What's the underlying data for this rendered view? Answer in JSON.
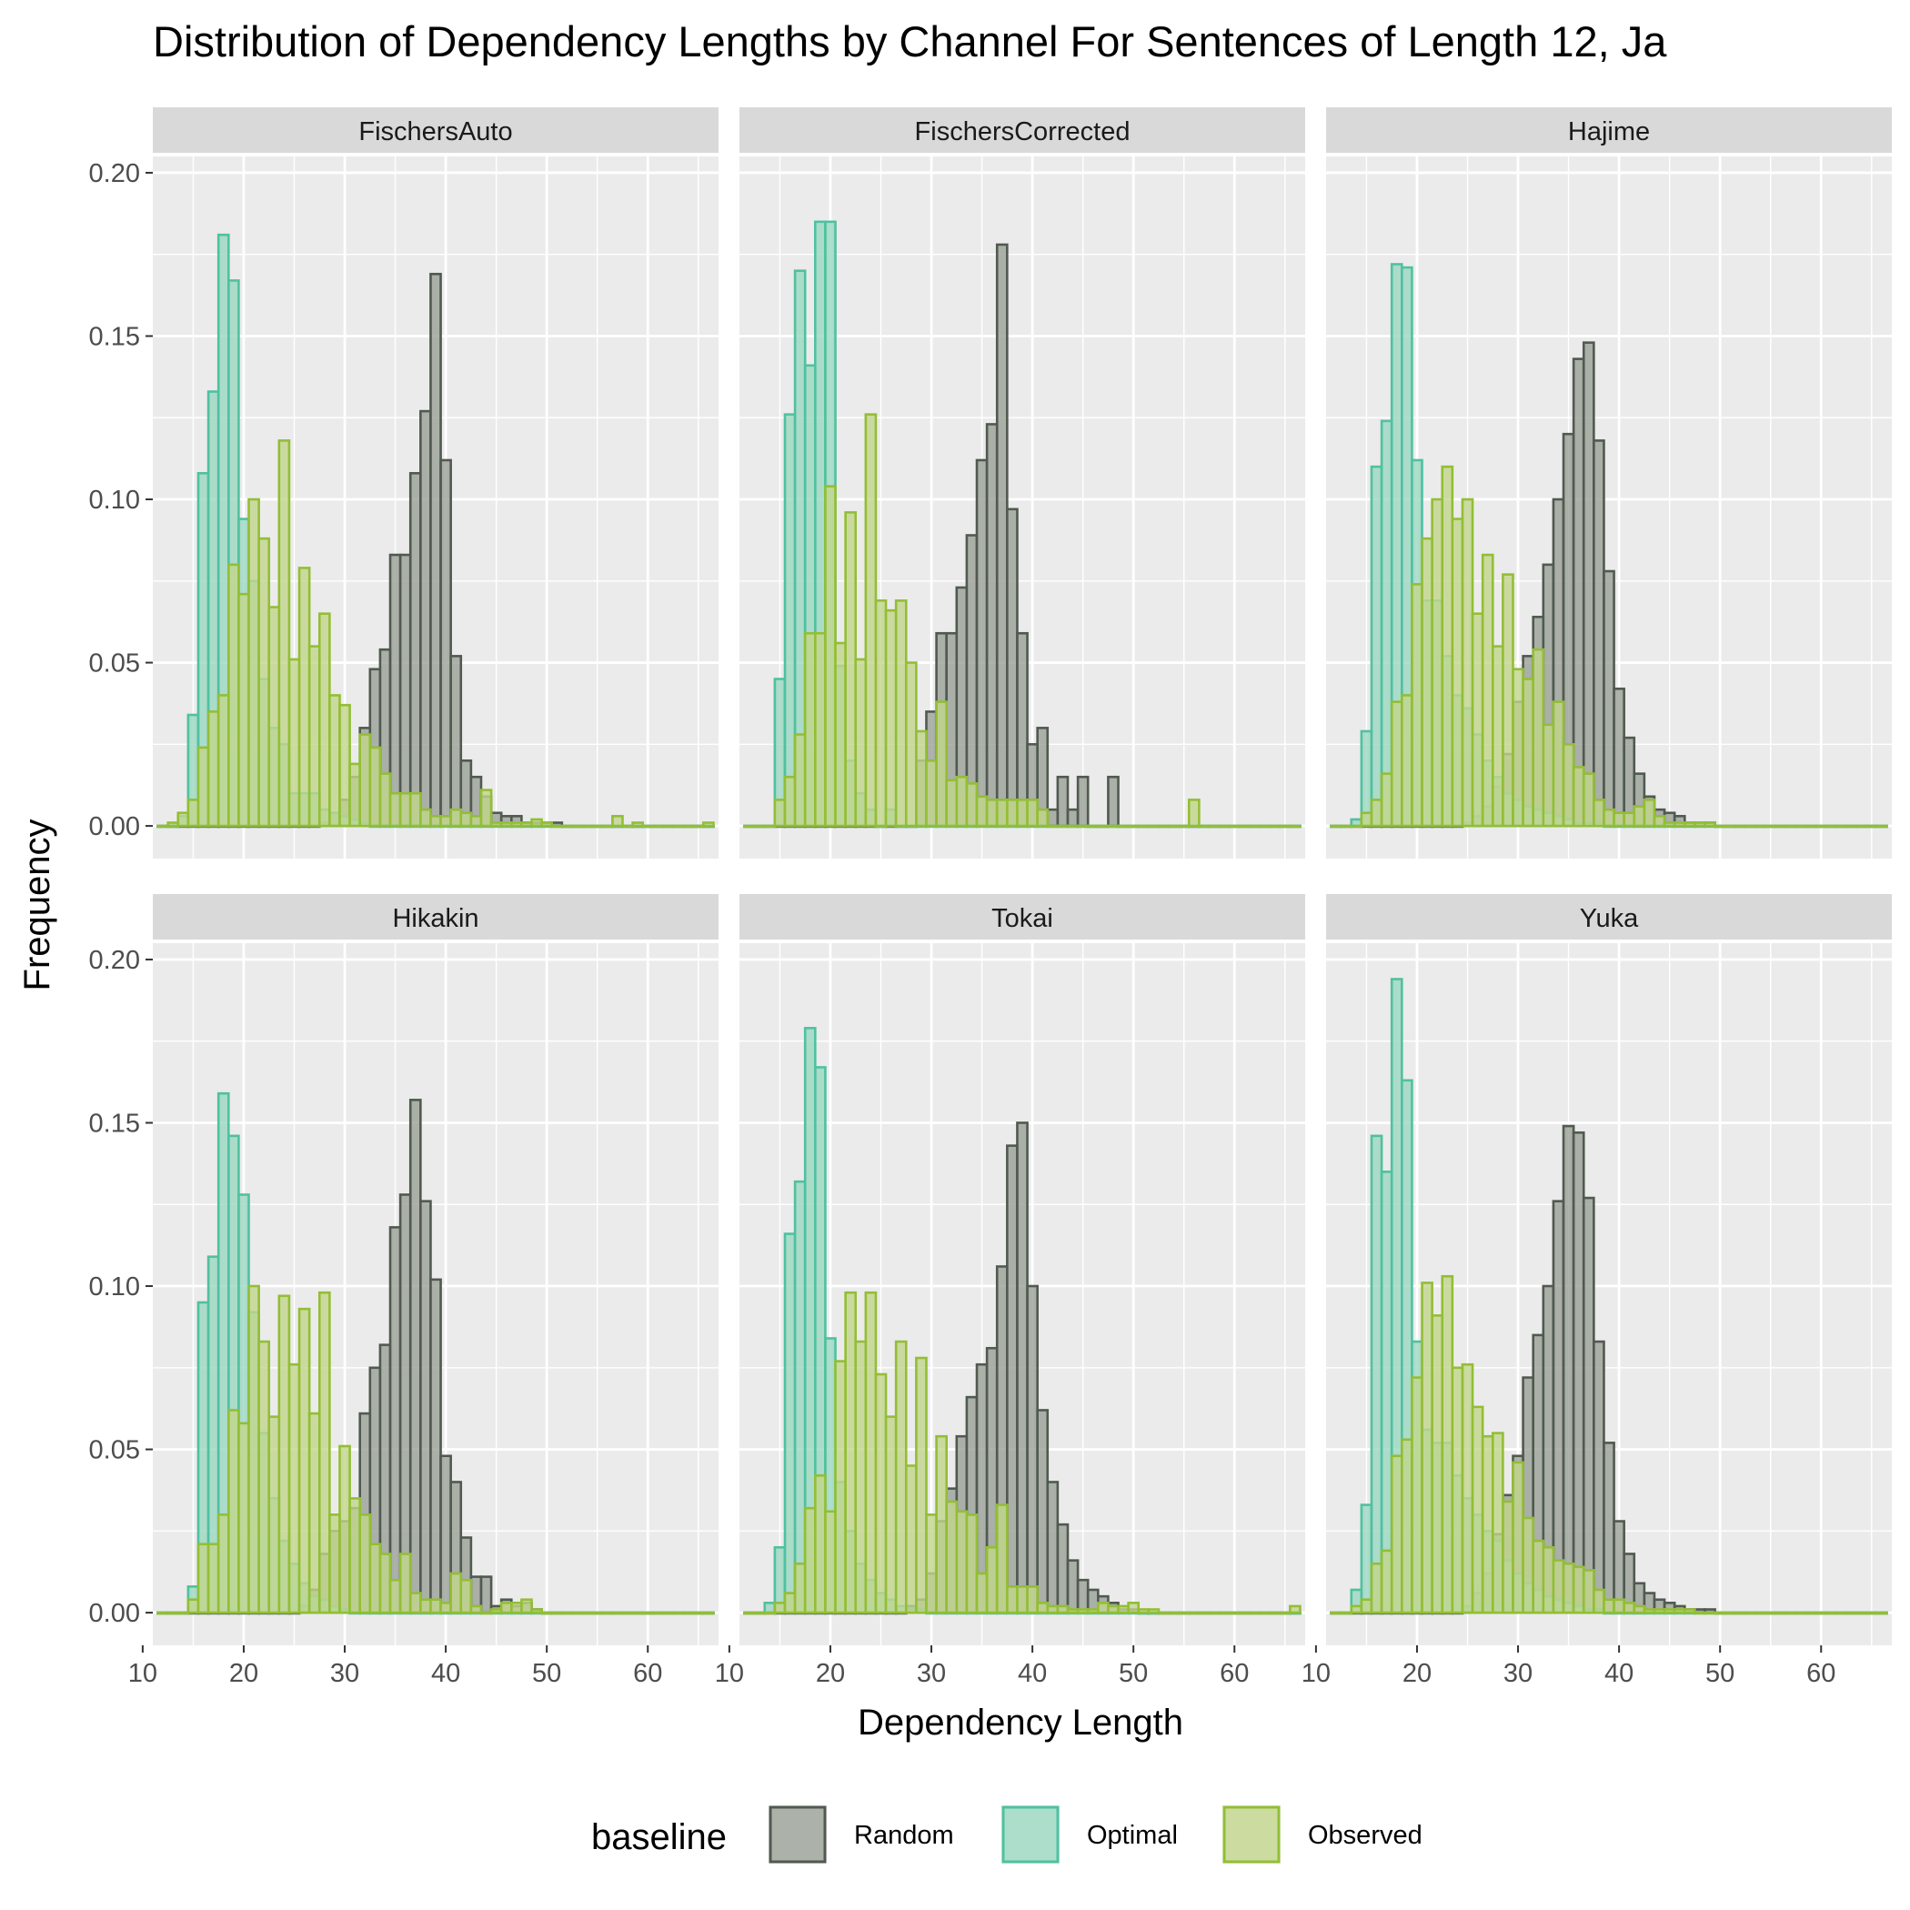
{
  "chart_data": {
    "type": "bar",
    "title": "Distribution of Dependency Lengths by Channel For Sentences of Length 12, Ja",
    "xlabel": "Dependency Length",
    "ylabel": "Frequency",
    "xlim": [
      11,
      67
    ],
    "ylim": [
      -0.01,
      0.205
    ],
    "x_ticks": [
      10,
      20,
      30,
      40,
      50,
      60
    ],
    "y_ticks": [
      0.0,
      0.05,
      0.1,
      0.15,
      0.2
    ],
    "y_tick_labels": [
      "0.00",
      "0.05",
      "0.10",
      "0.15",
      "0.20"
    ],
    "grid": true,
    "bin_start": 12,
    "bin_width": 1,
    "legend": {
      "title": "baseline",
      "position": "bottom",
      "entries": [
        {
          "name": "Random",
          "fill": "#9aa096",
          "stroke": "#505a50"
        },
        {
          "name": "Optimal",
          "fill": "#9bd7c1",
          "stroke": "#4fc1a0"
        },
        {
          "name": "Observed",
          "fill": "#c2d68c",
          "stroke": "#93be35"
        }
      ]
    },
    "facets": [
      {
        "name": "FischersAuto",
        "series": {
          "Random": [
            0,
            0,
            0,
            0,
            0,
            0,
            0,
            0,
            0,
            0,
            0,
            0,
            0,
            0,
            0,
            0,
            0.001,
            0.004,
            0.008,
            0.015,
            0.03,
            0.048,
            0.054,
            0.083,
            0.083,
            0.108,
            0.127,
            0.169,
            0.112,
            0.052,
            0.02,
            0.015,
            0.009,
            0.004,
            0.003,
            0.003,
            0.001,
            0.001,
            0.001,
            0.001,
            0,
            0,
            0,
            0,
            0,
            0,
            0,
            0,
            0,
            0,
            0,
            0,
            0,
            0,
            0
          ],
          "Optimal": [
            0,
            0,
            0.003,
            0.034,
            0.108,
            0.133,
            0.181,
            0.167,
            0.094,
            0.075,
            0.045,
            0.03,
            0.025,
            0.01,
            0.01,
            0.01,
            0.005,
            0.004,
            0.003,
            0.002,
            0.001,
            0,
            0,
            0,
            0,
            0,
            0,
            0,
            0,
            0,
            0,
            0,
            0,
            0,
            0,
            0,
            0,
            0,
            0,
            0,
            0,
            0,
            0,
            0,
            0,
            0,
            0,
            0,
            0,
            0,
            0,
            0,
            0,
            0,
            0
          ],
          "Observed": [
            0,
            0.001,
            0.004,
            0.008,
            0.024,
            0.035,
            0.04,
            0.08,
            0.071,
            0.1,
            0.088,
            0.067,
            0.118,
            0.051,
            0.079,
            0.055,
            0.065,
            0.04,
            0.037,
            0.019,
            0.028,
            0.024,
            0.016,
            0.01,
            0.01,
            0.01,
            0.005,
            0.003,
            0.003,
            0.005,
            0.004,
            0.003,
            0.011,
            0.001,
            0.001,
            0.001,
            0.001,
            0.002,
            0.001,
            0,
            0,
            0,
            0,
            0,
            0,
            0.003,
            0,
            0.001,
            0,
            0,
            0,
            0,
            0,
            0,
            0.001
          ]
        }
      },
      {
        "name": "FischersCorrected",
        "series": {
          "Random": [
            0,
            0,
            0,
            0,
            0,
            0,
            0,
            0,
            0,
            0,
            0,
            0,
            0,
            0,
            0,
            0,
            0,
            0.02,
            0.035,
            0.059,
            0.059,
            0.073,
            0.089,
            0.112,
            0.123,
            0.178,
            0.097,
            0.059,
            0.025,
            0.03,
            0.005,
            0.015,
            0.005,
            0.015,
            0,
            0,
            0.015,
            0,
            0,
            0,
            0,
            0,
            0,
            0,
            0,
            0,
            0,
            0,
            0,
            0,
            0,
            0,
            0,
            0,
            0
          ],
          "Optimal": [
            0,
            0,
            0,
            0.045,
            0.126,
            0.17,
            0.141,
            0.185,
            0.185,
            0.049,
            0.02,
            0.01,
            0.005,
            0,
            0.005,
            0,
            0,
            0,
            0,
            0,
            0,
            0,
            0,
            0,
            0,
            0,
            0,
            0,
            0,
            0,
            0,
            0,
            0,
            0,
            0,
            0,
            0,
            0,
            0,
            0,
            0,
            0,
            0,
            0,
            0,
            0,
            0,
            0,
            0,
            0,
            0,
            0,
            0,
            0,
            0
          ],
          "Observed": [
            0,
            0,
            0,
            0.008,
            0.015,
            0.028,
            0.059,
            0.059,
            0.104,
            0.056,
            0.096,
            0.051,
            0.126,
            0.069,
            0.066,
            0.069,
            0.05,
            0.029,
            0.02,
            0.038,
            0.014,
            0.015,
            0.013,
            0.009,
            0.008,
            0.008,
            0.008,
            0.008,
            0.008,
            0.005,
            0,
            0,
            0,
            0,
            0,
            0,
            0,
            0,
            0,
            0,
            0,
            0,
            0,
            0,
            0.008,
            0,
            0,
            0,
            0,
            0,
            0,
            0,
            0,
            0,
            0
          ]
        }
      },
      {
        "name": "Hajime",
        "series": {
          "Random": [
            0,
            0,
            0,
            0,
            0,
            0,
            0,
            0,
            0,
            0,
            0,
            0,
            0,
            0.001,
            0.003,
            0.006,
            0.012,
            0.022,
            0.038,
            0.052,
            0.064,
            0.08,
            0.1,
            0.12,
            0.143,
            0.148,
            0.118,
            0.078,
            0.042,
            0.027,
            0.016,
            0.009,
            0.005,
            0.004,
            0.003,
            0.001,
            0.001,
            0.001,
            0,
            0,
            0,
            0,
            0,
            0,
            0,
            0,
            0,
            0,
            0,
            0,
            0,
            0,
            0,
            0,
            0
          ],
          "Optimal": [
            0,
            0,
            0.002,
            0.029,
            0.11,
            0.124,
            0.172,
            0.171,
            0.112,
            0.069,
            0.069,
            0.052,
            0.04,
            0.036,
            0.028,
            0.02,
            0.015,
            0.01,
            0.008,
            0.006,
            0.005,
            0.004,
            0.003,
            0.002,
            0.001,
            0.001,
            0.001,
            0,
            0,
            0,
            0,
            0,
            0,
            0,
            0,
            0,
            0,
            0,
            0,
            0,
            0,
            0,
            0,
            0,
            0,
            0,
            0,
            0,
            0,
            0,
            0,
            0,
            0,
            0,
            0
          ],
          "Observed": [
            0,
            0,
            0,
            0.004,
            0.008,
            0.016,
            0.038,
            0.04,
            0.074,
            0.088,
            0.1,
            0.11,
            0.094,
            0.1,
            0.065,
            0.083,
            0.055,
            0.077,
            0.048,
            0.045,
            0.054,
            0.031,
            0.038,
            0.025,
            0.018,
            0.016,
            0.008,
            0.005,
            0.004,
            0.004,
            0.006,
            0.008,
            0.003,
            0.001,
            0.001,
            0.001,
            0.001,
            0.001,
            0,
            0,
            0,
            0,
            0,
            0,
            0,
            0,
            0,
            0,
            0,
            0,
            0,
            0,
            0,
            0,
            0
          ]
        }
      },
      {
        "name": "Hikakin",
        "series": {
          "Random": [
            0,
            0,
            0,
            0,
            0,
            0,
            0,
            0,
            0,
            0,
            0,
            0,
            0,
            0,
            0.002,
            0.007,
            0.018,
            0.025,
            0.028,
            0.032,
            0.061,
            0.075,
            0.082,
            0.118,
            0.128,
            0.157,
            0.126,
            0.102,
            0.048,
            0.04,
            0.023,
            0.011,
            0.011,
            0.002,
            0.004,
            0.002,
            0.003,
            0.001,
            0,
            0,
            0,
            0,
            0,
            0,
            0,
            0,
            0,
            0,
            0,
            0,
            0,
            0,
            0,
            0,
            0
          ],
          "Optimal": [
            0,
            0,
            0,
            0.008,
            0.095,
            0.109,
            0.159,
            0.146,
            0.128,
            0.092,
            0.055,
            0.035,
            0.022,
            0.015,
            0.009,
            0.005,
            0.004,
            0.002,
            0.001,
            0,
            0,
            0,
            0,
            0,
            0,
            0,
            0,
            0,
            0,
            0,
            0,
            0,
            0,
            0,
            0,
            0,
            0,
            0,
            0,
            0,
            0,
            0,
            0,
            0,
            0,
            0,
            0,
            0,
            0,
            0,
            0,
            0,
            0,
            0,
            0
          ],
          "Observed": [
            0,
            0,
            0,
            0.004,
            0.021,
            0.021,
            0.03,
            0.062,
            0.058,
            0.1,
            0.083,
            0.06,
            0.097,
            0.076,
            0.093,
            0.061,
            0.098,
            0.03,
            0.051,
            0.035,
            0.03,
            0.021,
            0.018,
            0.01,
            0.018,
            0.006,
            0.004,
            0.004,
            0.003,
            0.012,
            0.01,
            0.002,
            0,
            0.001,
            0.003,
            0.003,
            0.004,
            0.001,
            0,
            0,
            0,
            0,
            0,
            0,
            0,
            0,
            0,
            0,
            0,
            0,
            0,
            0,
            0,
            0,
            0
          ]
        }
      },
      {
        "name": "Tokai",
        "series": {
          "Random": [
            0,
            0,
            0,
            0,
            0,
            0,
            0,
            0,
            0,
            0,
            0,
            0,
            0,
            0,
            0,
            0,
            0.002,
            0.004,
            0.012,
            0.028,
            0.038,
            0.054,
            0.066,
            0.076,
            0.081,
            0.106,
            0.143,
            0.15,
            0.1,
            0.062,
            0.04,
            0.027,
            0.016,
            0.01,
            0.007,
            0.005,
            0.003,
            0.001,
            0.001,
            0,
            0,
            0,
            0,
            0,
            0,
            0,
            0,
            0,
            0,
            0,
            0,
            0,
            0,
            0,
            0
          ],
          "Optimal": [
            0,
            0,
            0.003,
            0.02,
            0.116,
            0.132,
            0.179,
            0.167,
            0.084,
            0.04,
            0.025,
            0.015,
            0.01,
            0.006,
            0.004,
            0.002,
            0.001,
            0.001,
            0,
            0,
            0,
            0,
            0,
            0,
            0,
            0,
            0,
            0,
            0,
            0,
            0,
            0,
            0,
            0,
            0,
            0,
            0,
            0,
            0,
            0,
            0,
            0,
            0,
            0,
            0,
            0,
            0,
            0,
            0,
            0,
            0,
            0,
            0,
            0,
            0
          ],
          "Observed": [
            0,
            0,
            0,
            0.003,
            0.006,
            0.015,
            0.032,
            0.042,
            0.031,
            0.077,
            0.098,
            0.083,
            0.098,
            0.073,
            0.06,
            0.083,
            0.045,
            0.078,
            0.03,
            0.054,
            0.034,
            0.031,
            0.03,
            0.012,
            0.02,
            0.033,
            0.008,
            0.008,
            0.008,
            0.003,
            0.002,
            0.002,
            0.001,
            0.001,
            0.001,
            0.003,
            0.002,
            0.002,
            0.003,
            0.001,
            0.001,
            0,
            0,
            0,
            0,
            0,
            0,
            0,
            0,
            0,
            0,
            0,
            0,
            0,
            0.002
          ]
        }
      },
      {
        "name": "Yuka",
        "series": {
          "Random": [
            0,
            0,
            0,
            0,
            0,
            0,
            0,
            0,
            0,
            0,
            0,
            0,
            0,
            0.002,
            0.006,
            0.012,
            0.024,
            0.036,
            0.048,
            0.072,
            0.085,
            0.1,
            0.126,
            0.149,
            0.147,
            0.127,
            0.083,
            0.052,
            0.028,
            0.018,
            0.009,
            0.006,
            0.004,
            0.003,
            0.002,
            0.001,
            0.001,
            0.001,
            0,
            0,
            0,
            0,
            0,
            0,
            0,
            0,
            0,
            0,
            0,
            0,
            0,
            0,
            0,
            0,
            0
          ],
          "Optimal": [
            0,
            0,
            0.007,
            0.033,
            0.146,
            0.135,
            0.194,
            0.163,
            0.083,
            0.056,
            0.052,
            0.052,
            0.042,
            0.035,
            0.03,
            0.025,
            0.022,
            0.016,
            0.012,
            0.009,
            0.007,
            0.005,
            0.004,
            0.003,
            0.002,
            0.001,
            0.001,
            0,
            0,
            0,
            0,
            0,
            0,
            0,
            0,
            0,
            0,
            0,
            0,
            0,
            0,
            0,
            0,
            0,
            0,
            0,
            0,
            0,
            0,
            0,
            0,
            0,
            0,
            0,
            0
          ],
          "Observed": [
            0,
            0,
            0.002,
            0.004,
            0.015,
            0.019,
            0.048,
            0.053,
            0.072,
            0.101,
            0.091,
            0.103,
            0.075,
            0.076,
            0.063,
            0.054,
            0.055,
            0.034,
            0.046,
            0.029,
            0.022,
            0.02,
            0.016,
            0.015,
            0.014,
            0.013,
            0.007,
            0.004,
            0.004,
            0.003,
            0.002,
            0.001,
            0.001,
            0.001,
            0.001,
            0.001,
            0,
            0,
            0,
            0,
            0,
            0,
            0,
            0,
            0,
            0,
            0,
            0,
            0,
            0,
            0,
            0,
            0,
            0,
            0
          ]
        }
      }
    ]
  }
}
